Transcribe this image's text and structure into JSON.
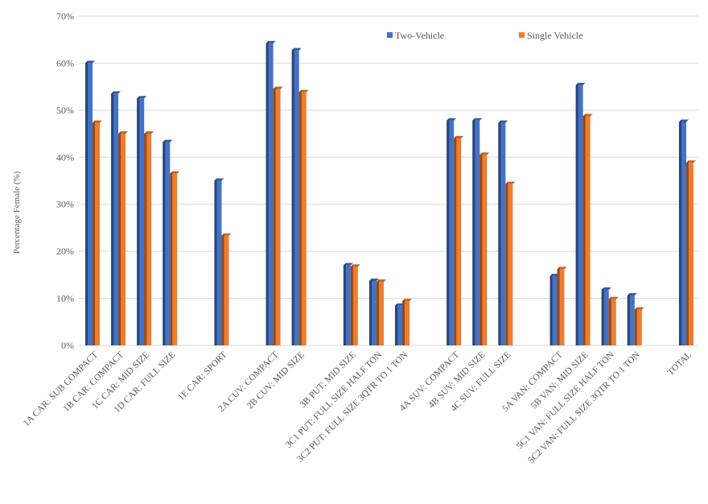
{
  "chart_data": {
    "type": "bar",
    "ylabel": "Percentage Female (%)",
    "ylim": [
      0,
      70
    ],
    "yticks": [
      "0%",
      "10%",
      "20%",
      "30%",
      "40%",
      "50%",
      "60%",
      "70%"
    ],
    "grid": true,
    "legend_position": "top-right",
    "categories": [
      "1A CAR: SUB COMPACT",
      "1B CAR: COMPACT",
      "1C CAR: MID SIZE",
      "1D CAR: FULL SIZE",
      "",
      "1E CAR: SPORT",
      "",
      "2A CUV: COMPACT",
      "2B CUV: MID SIZE",
      "",
      "3B PUT: MID SIZE",
      "3C1 PUT: FULL SIZE HALF TON",
      "3C2 PUT: FULL SIZE 3QTR TO 1 TON",
      "",
      "4A SUV: COMPACT",
      "4B SUV: MID SIZE",
      "4C SUV: FULL SIZE",
      "",
      "5A VAN: COMPACT",
      "5B VAN: MID SIZE",
      "5C1 VAN: FULL SIZE HALF TON",
      "5C2 VAN: FULL SIZE 3QTR TO 1 TON",
      "",
      "TOTAL"
    ],
    "series": [
      {
        "name": "Two-Vehicle",
        "color": "#4472C4",
        "values": [
          60,
          53.5,
          52.5,
          43.2,
          null,
          35,
          null,
          64.2,
          62.7,
          null,
          17,
          13.7,
          8.4,
          null,
          47.8,
          47.8,
          47.3,
          null,
          14.7,
          55.3,
          11.8,
          10.6,
          null,
          47.5
        ]
      },
      {
        "name": "Single Vehicle",
        "color": "#ED7D31",
        "values": [
          47.3,
          45,
          45,
          36.5,
          null,
          23.3,
          null,
          54.5,
          53.8,
          null,
          16.7,
          13.5,
          9.4,
          null,
          44,
          40.5,
          34.3,
          null,
          16.2,
          48.7,
          9.8,
          7.6,
          null,
          38.8
        ]
      }
    ]
  }
}
